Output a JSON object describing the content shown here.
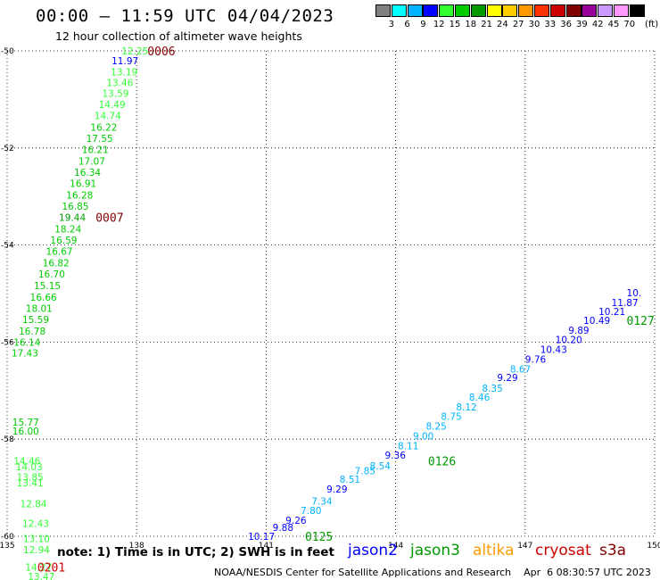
{
  "header": {
    "title": "00:00 — 11:59 UTC 04/04/2023",
    "subtitle": "12 hour collection of altimeter wave heights"
  },
  "legend": {
    "colors": [
      "#808080",
      "#00ffff",
      "#00b3ff",
      "#0000ff",
      "#33ff33",
      "#00cc00",
      "#009900",
      "#ffff00",
      "#ffcc00",
      "#ff9900",
      "#ff3300",
      "#cc0000",
      "#800000",
      "#990099",
      "#cc99ff",
      "#ff99ff",
      "#000000"
    ],
    "labels": [
      "3",
      "6",
      "9",
      "12",
      "15",
      "18",
      "21",
      "24",
      "27",
      "30",
      "33",
      "36",
      "39",
      "42",
      "45",
      "70"
    ],
    "unit": "(ft)"
  },
  "axes": {
    "lon_ticks": [
      "135",
      "138",
      "141",
      "144",
      "147",
      "150"
    ],
    "lat_ticks": [
      "-50",
      "-52",
      "-54",
      "-56",
      "-58",
      "-60"
    ]
  },
  "tracks": [
    {
      "name": "track-left",
      "values": [
        {
          "v": "12.25",
          "c": "#33ff33",
          "lon": 137.65,
          "lat": -50.0
        },
        {
          "v": "11.97",
          "c": "#0000ff",
          "lon": 137.42,
          "lat": -50.2
        },
        {
          "v": "13.19",
          "c": "#33ff33",
          "lon": 137.4,
          "lat": -50.43
        },
        {
          "v": "13.46",
          "c": "#33ff33",
          "lon": 137.3,
          "lat": -50.65
        },
        {
          "v": "13.59",
          "c": "#33ff33",
          "lon": 137.2,
          "lat": -50.87
        },
        {
          "v": "14.49",
          "c": "#33ff33",
          "lon": 137.12,
          "lat": -51.1
        },
        {
          "v": "14.74",
          "c": "#33ff33",
          "lon": 137.02,
          "lat": -51.33
        },
        {
          "v": "16.22",
          "c": "#00cc00",
          "lon": 136.93,
          "lat": -51.57
        },
        {
          "v": "17.55",
          "c": "#00cc00",
          "lon": 136.83,
          "lat": -51.8
        },
        {
          "v": "16.21",
          "c": "#00cc00",
          "lon": 136.73,
          "lat": -52.03
        },
        {
          "v": "17.07",
          "c": "#00cc00",
          "lon": 136.65,
          "lat": -52.27
        },
        {
          "v": "16.34",
          "c": "#00cc00",
          "lon": 136.55,
          "lat": -52.5
        },
        {
          "v": "16.91",
          "c": "#00cc00",
          "lon": 136.45,
          "lat": -52.73
        },
        {
          "v": "16.28",
          "c": "#00cc00",
          "lon": 136.37,
          "lat": -52.97
        },
        {
          "v": "16.85",
          "c": "#00cc00",
          "lon": 136.27,
          "lat": -53.2
        },
        {
          "v": "19.44",
          "c": "#009900",
          "lon": 136.2,
          "lat": -53.43
        },
        {
          "v": "18.24",
          "c": "#00cc00",
          "lon": 136.1,
          "lat": -53.67
        },
        {
          "v": "16.59",
          "c": "#00cc00",
          "lon": 136.0,
          "lat": -53.9
        },
        {
          "v": "16.67",
          "c": "#00cc00",
          "lon": 135.9,
          "lat": -54.13
        },
        {
          "v": "16.82",
          "c": "#00cc00",
          "lon": 135.82,
          "lat": -54.37
        },
        {
          "v": "16.70",
          "c": "#00cc00",
          "lon": 135.72,
          "lat": -54.6
        },
        {
          "v": "15.15",
          "c": "#00cc00",
          "lon": 135.62,
          "lat": -54.83
        },
        {
          "v": "16.66",
          "c": "#00cc00",
          "lon": 135.53,
          "lat": -55.07
        },
        {
          "v": "18.01",
          "c": "#00cc00",
          "lon": 135.43,
          "lat": -55.3
        },
        {
          "v": "15.59",
          "c": "#00cc00",
          "lon": 135.35,
          "lat": -55.53
        },
        {
          "v": "16.78",
          "c": "#00cc00",
          "lon": 135.27,
          "lat": -55.77
        },
        {
          "v": "16.14",
          "c": "#00cc00",
          "lon": 135.15,
          "lat": -56.0
        },
        {
          "v": "17.43",
          "c": "#00cc00",
          "lon": 135.1,
          "lat": -56.22
        }
      ]
    },
    {
      "name": "track-lower-left",
      "values": [
        {
          "v": "15.77",
          "c": "#00cc00",
          "lon": 135.12,
          "lat": -57.65
        },
        {
          "v": "16.00",
          "c": "#00cc00",
          "lon": 135.12,
          "lat": -57.83
        },
        {
          "v": "14.46",
          "c": "#33ff33",
          "lon": 135.15,
          "lat": -58.45
        },
        {
          "v": "14.03",
          "c": "#33ff33",
          "lon": 135.2,
          "lat": -58.57
        },
        {
          "v": "13.85",
          "c": "#33ff33",
          "lon": 135.22,
          "lat": -58.78
        },
        {
          "v": "13.41",
          "c": "#33ff33",
          "lon": 135.22,
          "lat": -58.9
        },
        {
          "v": "12.84",
          "c": "#33ff33",
          "lon": 135.3,
          "lat": -59.33
        },
        {
          "v": "12.43",
          "c": "#33ff33",
          "lon": 135.35,
          "lat": -59.73
        },
        {
          "v": "13.10",
          "c": "#33ff33",
          "lon": 135.37,
          "lat": -60.05
        },
        {
          "v": "12.94",
          "c": "#33ff33",
          "lon": 135.37,
          "lat": -60.28
        },
        {
          "v": "14.27",
          "c": "#33ff33",
          "lon": 135.42,
          "lat": -60.63
        },
        {
          "v": "13.47",
          "c": "#33ff33",
          "lon": 135.48,
          "lat": -60.83
        }
      ]
    },
    {
      "name": "track-right",
      "values": [
        {
          "v": "10.17",
          "c": "#0000ff",
          "lon": 140.58,
          "lat": -60.0
        },
        {
          "v": "9.88",
          "c": "#0000ff",
          "lon": 141.15,
          "lat": -59.82
        },
        {
          "v": "9.26",
          "c": "#0000ff",
          "lon": 141.45,
          "lat": -59.67
        },
        {
          "v": "7.80",
          "c": "#00b3ff",
          "lon": 141.8,
          "lat": -59.47
        },
        {
          "v": "7.34",
          "c": "#00b3ff",
          "lon": 142.05,
          "lat": -59.27
        },
        {
          "v": "9.29",
          "c": "#0000ff",
          "lon": 142.4,
          "lat": -59.03
        },
        {
          "v": "8.51",
          "c": "#00b3ff",
          "lon": 142.7,
          "lat": -58.82
        },
        {
          "v": "7.85",
          "c": "#00b3ff",
          "lon": 143.05,
          "lat": -58.65
        },
        {
          "v": "8.54",
          "c": "#00b3ff",
          "lon": 143.4,
          "lat": -58.55
        },
        {
          "v": "9.36",
          "c": "#0000ff",
          "lon": 143.75,
          "lat": -58.33
        },
        {
          "v": "8.11",
          "c": "#00b3ff",
          "lon": 144.05,
          "lat": -58.13
        },
        {
          "v": "9.00",
          "c": "#00b3ff",
          "lon": 144.4,
          "lat": -57.93
        },
        {
          "v": "8.25",
          "c": "#00b3ff",
          "lon": 144.7,
          "lat": -57.73
        },
        {
          "v": "8.75",
          "c": "#00b3ff",
          "lon": 145.05,
          "lat": -57.53
        },
        {
          "v": "8.12",
          "c": "#00b3ff",
          "lon": 145.4,
          "lat": -57.33
        },
        {
          "v": "8.46",
          "c": "#00b3ff",
          "lon": 145.7,
          "lat": -57.13
        },
        {
          "v": "8.35",
          "c": "#00b3ff",
          "lon": 146.0,
          "lat": -56.95
        },
        {
          "v": "9.29",
          "c": "#0000ff",
          "lon": 146.35,
          "lat": -56.73
        },
        {
          "v": "8.67",
          "c": "#00b3ff",
          "lon": 146.65,
          "lat": -56.55
        },
        {
          "v": "9.76",
          "c": "#0000ff",
          "lon": 147.0,
          "lat": -56.35
        },
        {
          "v": "10.43",
          "c": "#0000ff",
          "lon": 147.35,
          "lat": -56.15
        },
        {
          "v": "10.20",
          "c": "#0000ff",
          "lon": 147.7,
          "lat": -55.95
        },
        {
          "v": "9.89",
          "c": "#0000ff",
          "lon": 148.0,
          "lat": -55.75
        },
        {
          "v": "10.49",
          "c": "#0000ff",
          "lon": 148.35,
          "lat": -55.55
        },
        {
          "v": "10.21",
          "c": "#0000ff",
          "lon": 148.7,
          "lat": -55.37
        },
        {
          "v": "11.87",
          "c": "#0000ff",
          "lon": 149.0,
          "lat": -55.18
        },
        {
          "v": "10.",
          "c": "#0000ff",
          "lon": 149.35,
          "lat": -54.98
        }
      ]
    }
  ],
  "time_labels": [
    {
      "v": "0006",
      "c": "#800000",
      "lon": 138.25,
      "lat": -50.0
    },
    {
      "v": "0007",
      "c": "#800000",
      "lon": 137.05,
      "lat": -53.43
    },
    {
      "v": "0201",
      "c": "#cc0000",
      "lon": 135.7,
      "lat": -60.63
    },
    {
      "v": "0125",
      "c": "#009900",
      "lon": 141.9,
      "lat": -60.0
    },
    {
      "v": "0126",
      "c": "#009900",
      "lon": 144.75,
      "lat": -58.45
    },
    {
      "v": "0127",
      "c": "#009900",
      "lon": 149.35,
      "lat": -55.55
    }
  ],
  "footer": {
    "note": "note: 1) Time is in UTC; 2) SWH is in feet",
    "satellites": [
      {
        "name": "jason2",
        "color": "#0000ff"
      },
      {
        "name": "jason3",
        "color": "#009900"
      },
      {
        "name": "altika",
        "color": "#ff9900"
      },
      {
        "name": "cryosat",
        "color": "#cc0000"
      },
      {
        "name": "s3a",
        "color": "#800000"
      }
    ],
    "credit": "NOAA/NESDIS Center for Satellite Applications and Research    Apr  6 08:30:57 UTC 2023"
  }
}
